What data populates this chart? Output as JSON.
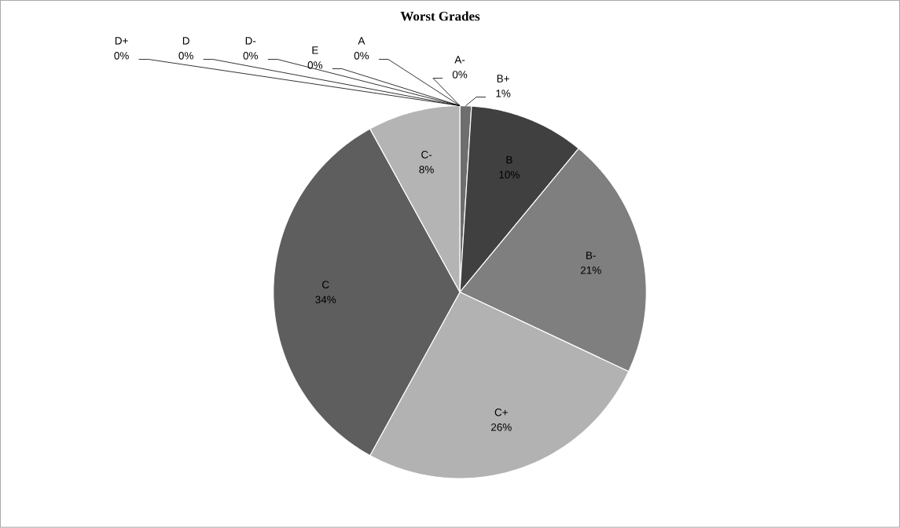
{
  "chart_data": {
    "type": "pie",
    "title": "Worst Grades",
    "categories": [
      "A",
      "A-",
      "B+",
      "B",
      "B-",
      "C+",
      "C",
      "C-",
      "D+",
      "D",
      "D-",
      "E"
    ],
    "values": [
      0,
      0,
      1,
      10,
      21,
      26,
      34,
      8,
      0,
      0,
      0,
      0
    ],
    "value_labels": [
      "0%",
      "0%",
      "1%",
      "10%",
      "21%",
      "26%",
      "34%",
      "8%",
      "0%",
      "0%",
      "0%",
      "0%"
    ],
    "colors": [
      "#8c8c8c",
      "#a5a5a5",
      "#6e6e6e",
      "#404040",
      "#7f7f7f",
      "#b2b2b2",
      "#5e5e5e",
      "#b4b4b4",
      "#999999",
      "#777777",
      "#555555",
      "#aaaaaa"
    ]
  }
}
